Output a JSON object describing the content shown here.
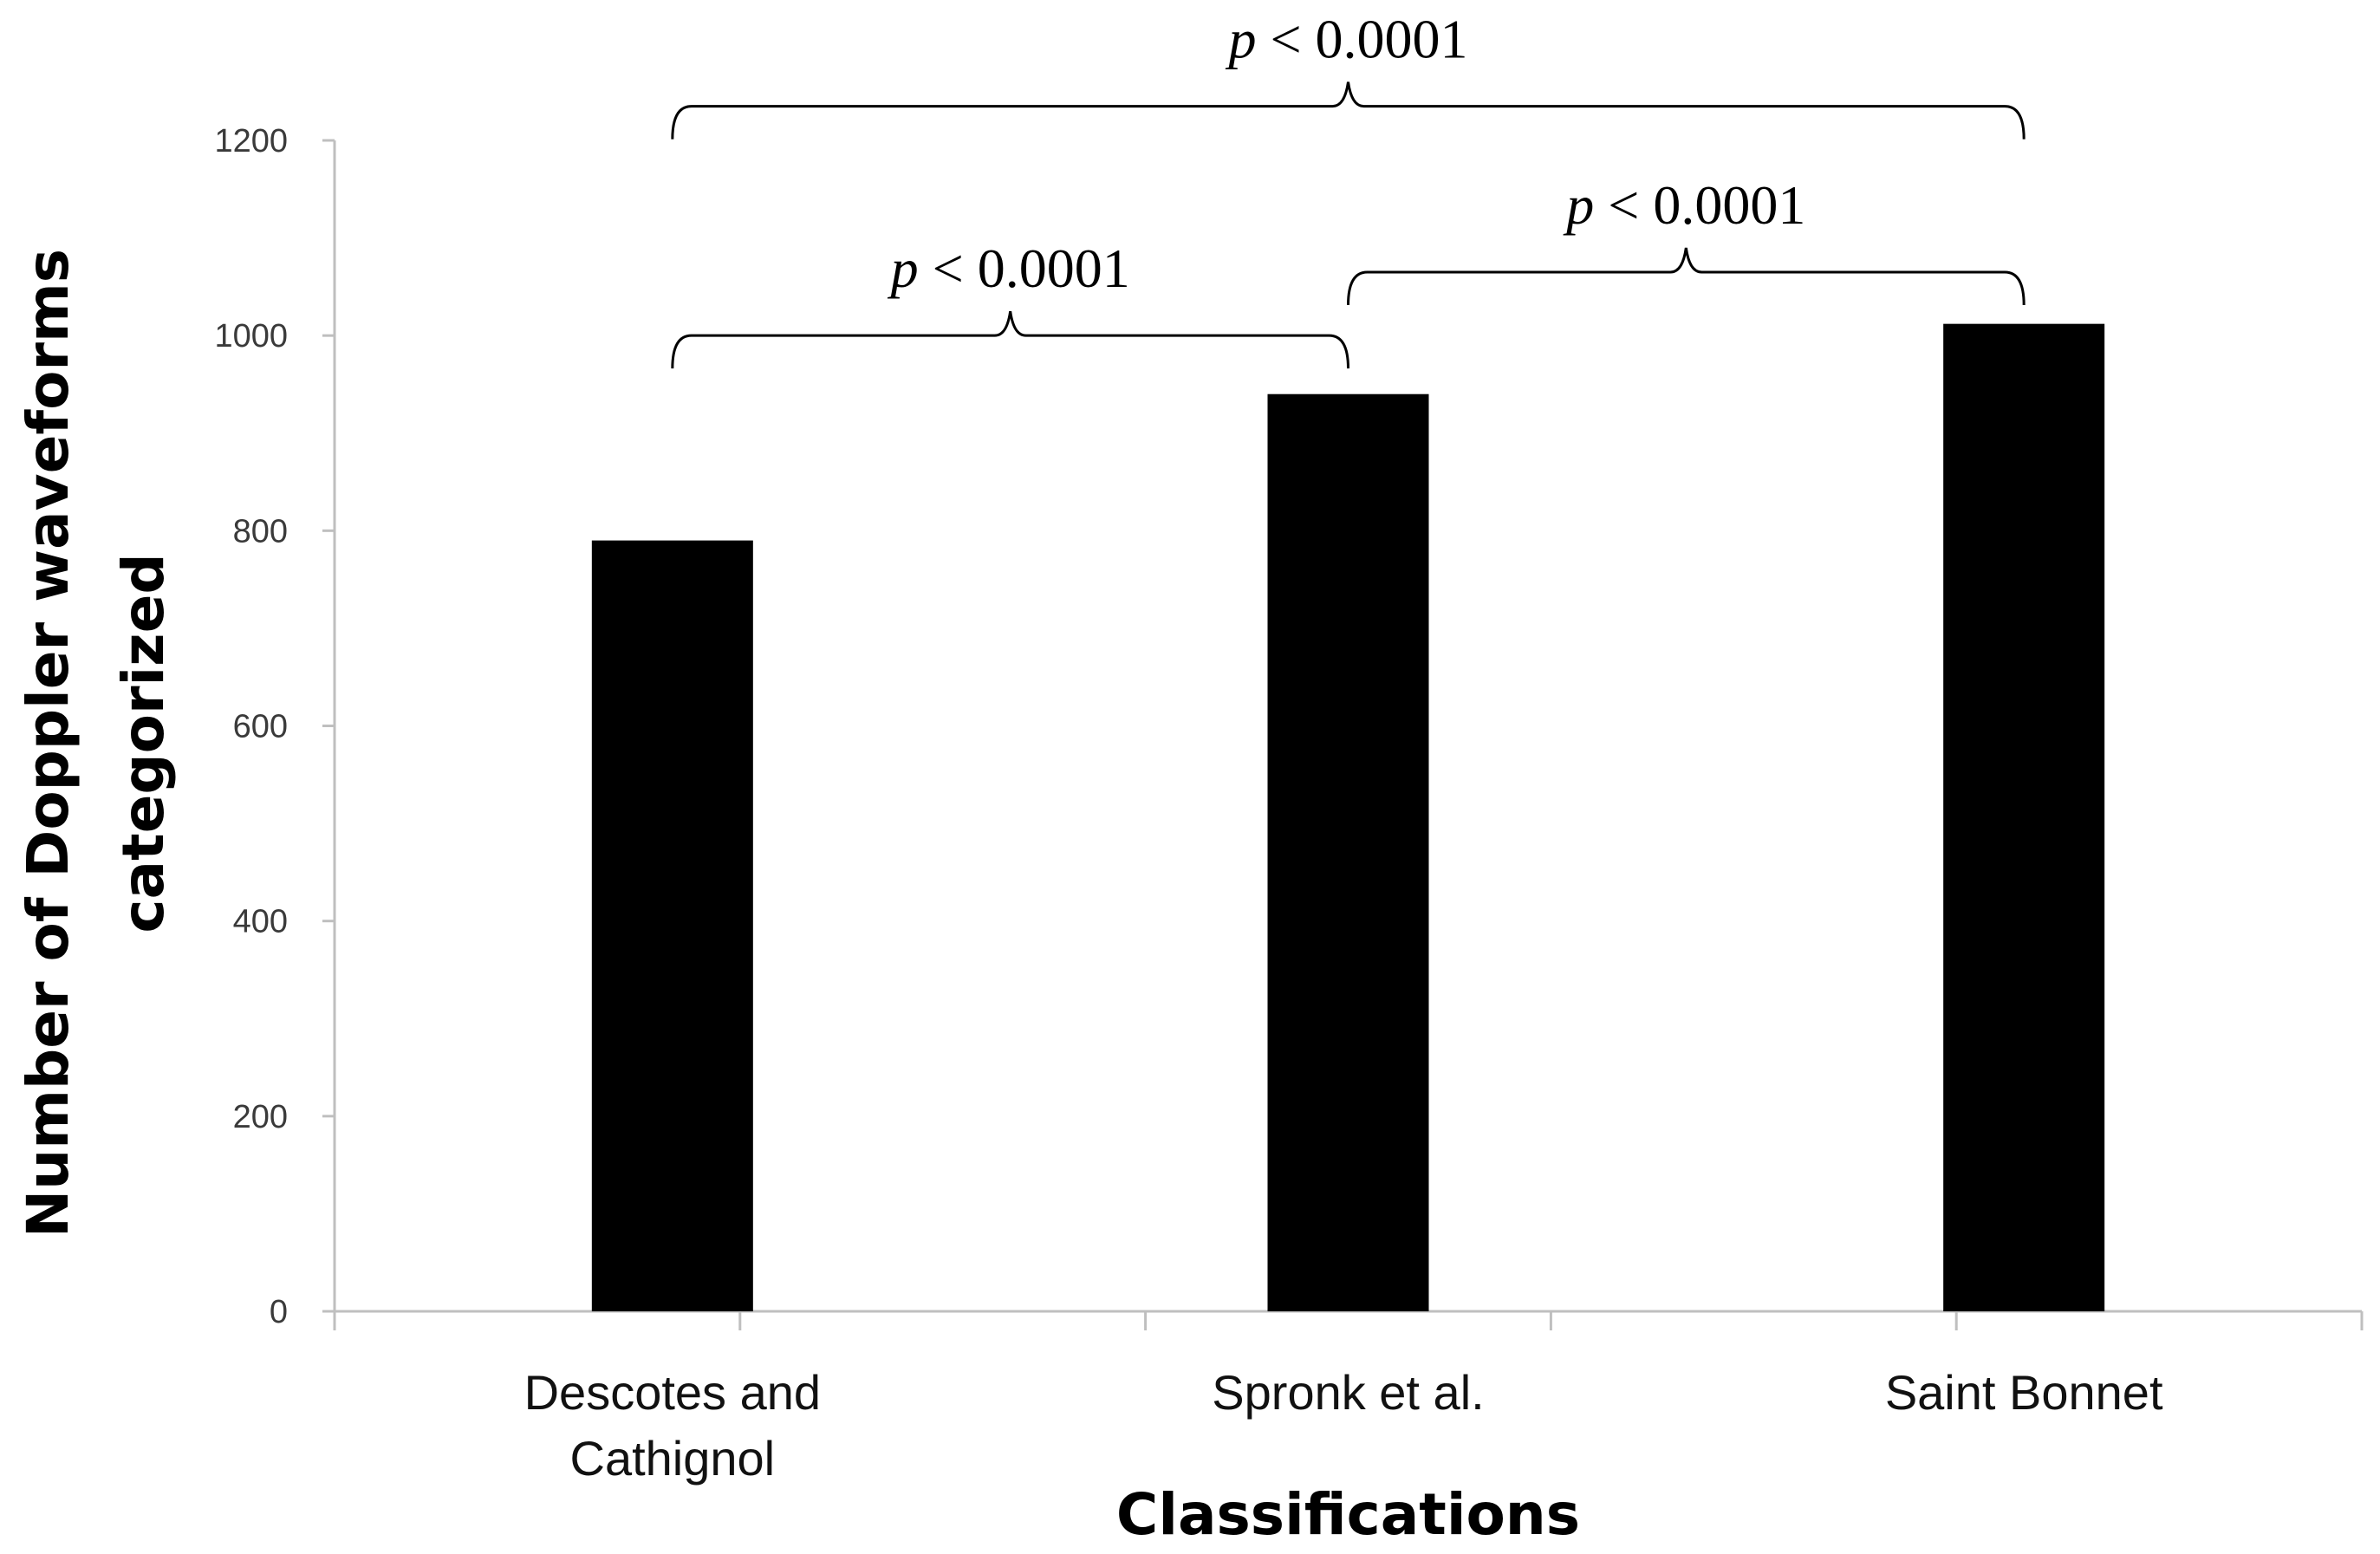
{
  "chart_data": {
    "type": "bar",
    "categories": [
      [
        "Descotes and",
        "Cathignol"
      ],
      [
        "Spronk et al."
      ],
      [
        "Saint Bonnet"
      ]
    ],
    "values": [
      790,
      940,
      1012
    ],
    "xlabel": "Classifications",
    "ylabel": [
      "Number of Doppler waveforms",
      "categorized"
    ],
    "ylim": [
      0,
      1200
    ],
    "yticks": [
      0,
      200,
      400,
      600,
      800,
      1000,
      1200
    ],
    "grid": false,
    "legend": "none",
    "bar_color": "#000000",
    "annotations": [
      {
        "from": 0,
        "to": 2,
        "p_symbol": "p",
        "text": " < 0.0001",
        "level": 1235
      },
      {
        "from": 0,
        "to": 1,
        "p_symbol": "p",
        "text": " < 0.0001",
        "level": 1000
      },
      {
        "from": 1,
        "to": 2,
        "p_symbol": "p",
        "text": " < 0.0001",
        "level": 1065
      }
    ]
  }
}
